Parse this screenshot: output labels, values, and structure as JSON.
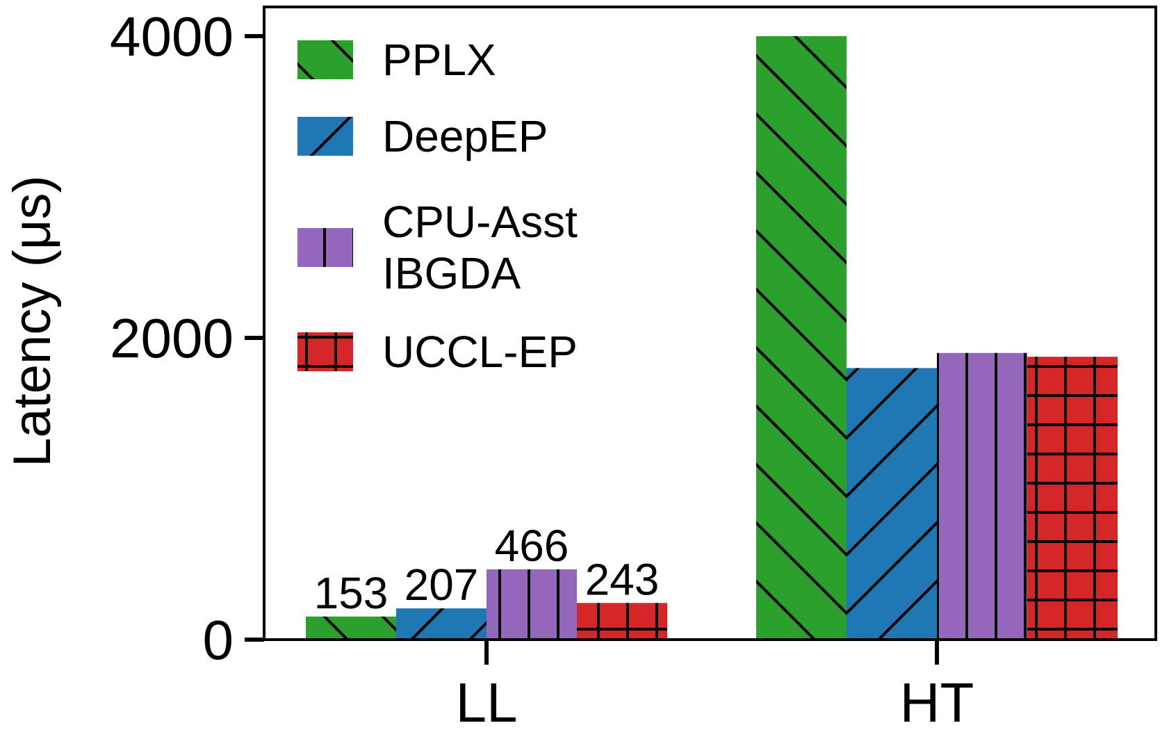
{
  "chart_data": {
    "type": "bar",
    "categories": [
      "LL",
      "HT"
    ],
    "series": [
      {
        "name": "PPLX",
        "values": [
          153,
          4000
        ],
        "color": "#2ca02c",
        "pattern": "backslash-hatch"
      },
      {
        "name": "DeepEP",
        "values": [
          207,
          1800
        ],
        "color": "#1f77b4",
        "pattern": "slash-hatch"
      },
      {
        "name": "CPU-Asst IBGDA",
        "values": [
          466,
          1900
        ],
        "color": "#9467bd",
        "pattern": "vertical-hatch"
      },
      {
        "name": "UCCL-EP",
        "values": [
          243,
          1875
        ],
        "color": "#d62728",
        "pattern": "grid-hatch"
      }
    ],
    "data_labels": [
      {
        "series": 0,
        "category": 0,
        "text": "153"
      },
      {
        "series": 1,
        "category": 0,
        "text": "207"
      },
      {
        "series": 2,
        "category": 0,
        "text": "466"
      },
      {
        "series": 3,
        "category": 0,
        "text": "243"
      }
    ],
    "ylabel": "Latency (μs)",
    "xlabel": "",
    "ylim": [
      0,
      4000
    ],
    "yticks": [
      0,
      2000,
      4000
    ],
    "ytick_labels": [
      "0",
      "2000",
      "4000"
    ],
    "legend": {
      "placement": "top-left",
      "entries": [
        {
          "lines": [
            "PPLX"
          ]
        },
        {
          "lines": [
            "DeepEP"
          ]
        },
        {
          "lines": [
            "CPU-Asst",
            "IBGDA"
          ]
        },
        {
          "lines": [
            "UCCL-EP"
          ]
        }
      ]
    },
    "grid": false
  }
}
